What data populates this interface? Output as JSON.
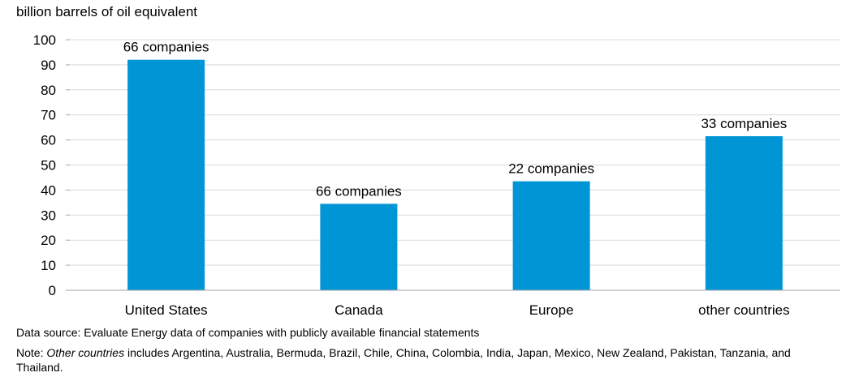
{
  "chart_data": {
    "type": "bar",
    "ylabel": "billion barrels of oil equivalent",
    "categories": [
      "United States",
      "Canada",
      "Europe",
      "other countries"
    ],
    "values": [
      92,
      34.5,
      43.5,
      61.5
    ],
    "annotations": [
      "66 companies",
      "66 companies",
      "22 companies",
      "33 companies"
    ],
    "ylim": [
      0,
      100
    ],
    "yticks": [
      0,
      10,
      20,
      30,
      40,
      50,
      60,
      70,
      80,
      90,
      100
    ],
    "grid": true,
    "colors": {
      "bar": "#0096D6",
      "grid": "#D9D9D9",
      "axis": "#A6A6A6"
    }
  },
  "footnotes": {
    "source": "Data source: Evaluate Energy data of companies with publicly available financial statements",
    "note_prefix": "Note: ",
    "note_italic": "Other countries",
    "note_rest": " includes Argentina, Australia, Bermuda, Brazil, Chile, China, Colombia, India, Japan, Mexico, New Zealand, Pakistan, Tanzania, and Thailand."
  }
}
